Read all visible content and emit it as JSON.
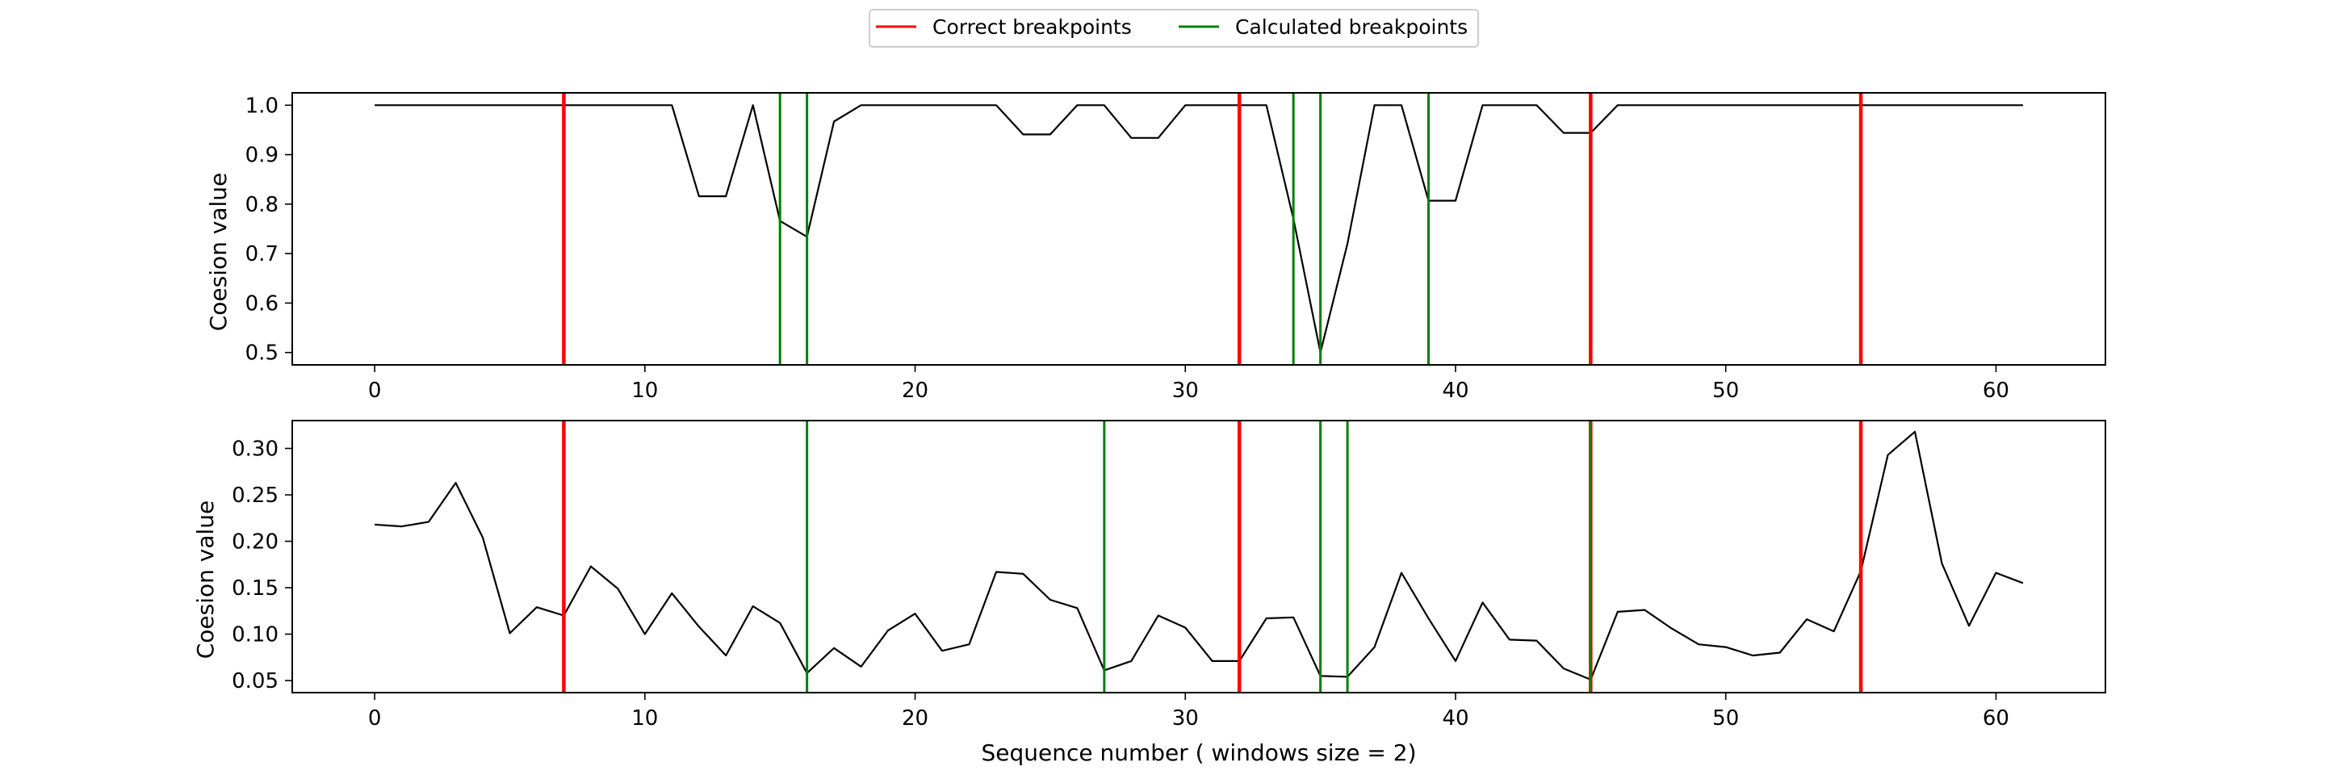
{
  "legend": {
    "correct_label": "Correct breakpoints",
    "calculated_label": "Calculated breakpoints",
    "placement": "top-center"
  },
  "colors": {
    "correct": "#ff0000",
    "calculated": "#008000",
    "series": "#000000"
  },
  "chart_data": [
    {
      "type": "line",
      "title": "",
      "xlabel": "",
      "ylabel": "Coesion value",
      "xlim": [
        -3.05,
        64.05
      ],
      "ylim": [
        0.475,
        1.025
      ],
      "xticks": [
        0,
        10,
        20,
        30,
        40,
        50,
        60
      ],
      "yticks": [
        0.5,
        0.6,
        0.7,
        0.8,
        0.9,
        1.0
      ],
      "ytick_labels": [
        "0.5",
        "0.6",
        "0.7",
        "0.8",
        "0.9",
        "1.0"
      ],
      "grid": false,
      "correct_breakpoints": [
        7,
        32,
        45,
        55
      ],
      "calculated_breakpoints": [
        15,
        16,
        34,
        35,
        39
      ],
      "x": [
        0,
        1,
        2,
        3,
        4,
        5,
        6,
        7,
        8,
        9,
        10,
        11,
        12,
        13,
        14,
        15,
        16,
        17,
        18,
        19,
        20,
        21,
        22,
        23,
        24,
        25,
        26,
        27,
        28,
        29,
        30,
        31,
        32,
        33,
        34,
        35,
        36,
        37,
        38,
        39,
        40,
        41,
        42,
        43,
        44,
        45,
        46,
        47,
        48,
        49,
        50,
        51,
        52,
        53,
        54,
        55,
        56,
        57,
        58,
        59,
        60,
        61
      ],
      "values": [
        1.0,
        1.0,
        1.0,
        1.0,
        1.0,
        1.0,
        1.0,
        1.0,
        1.0,
        1.0,
        1.0,
        1.0,
        0.816,
        0.816,
        1.0,
        0.766,
        0.734,
        0.967,
        1.0,
        1.0,
        1.0,
        1.0,
        1.0,
        1.0,
        0.941,
        0.941,
        1.0,
        1.0,
        0.934,
        0.934,
        1.0,
        1.0,
        1.0,
        1.0,
        0.77,
        0.5,
        0.72,
        1.0,
        1.0,
        0.807,
        0.807,
        1.0,
        1.0,
        1.0,
        0.944,
        0.944,
        1.0,
        1.0,
        1.0,
        1.0,
        1.0,
        1.0,
        1.0,
        1.0,
        1.0,
        1.0,
        1.0,
        1.0,
        1.0,
        1.0,
        1.0,
        1.0
      ]
    },
    {
      "type": "line",
      "title": "",
      "xlabel": "Sequence number ( windows size = 2)",
      "ylabel": "Coesion value",
      "xlim": [
        -3.05,
        64.05
      ],
      "ylim": [
        0.037,
        0.33
      ],
      "xticks": [
        0,
        10,
        20,
        30,
        40,
        50,
        60
      ],
      "yticks": [
        0.05,
        0.1,
        0.15,
        0.2,
        0.25,
        0.3
      ],
      "ytick_labels": [
        "0.05",
        "0.10",
        "0.15",
        "0.20",
        "0.25",
        "0.30"
      ],
      "grid": false,
      "correct_breakpoints": [
        7,
        32,
        45,
        55
      ],
      "calculated_breakpoints": [
        16,
        27,
        35,
        36,
        45
      ],
      "x": [
        0,
        1,
        2,
        3,
        4,
        5,
        6,
        7,
        8,
        9,
        10,
        11,
        12,
        13,
        14,
        15,
        16,
        17,
        18,
        19,
        20,
        21,
        22,
        23,
        24,
        25,
        26,
        27,
        28,
        29,
        30,
        31,
        32,
        33,
        34,
        35,
        36,
        37,
        38,
        39,
        40,
        41,
        42,
        43,
        44,
        45,
        46,
        47,
        48,
        49,
        50,
        51,
        52,
        53,
        54,
        55,
        56,
        57,
        58,
        59,
        60,
        61
      ],
      "values": [
        0.218,
        0.216,
        0.221,
        0.263,
        0.204,
        0.101,
        0.129,
        0.12,
        0.173,
        0.149,
        0.1,
        0.144,
        0.108,
        0.077,
        0.13,
        0.112,
        0.058,
        0.085,
        0.065,
        0.104,
        0.122,
        0.082,
        0.089,
        0.167,
        0.165,
        0.137,
        0.128,
        0.061,
        0.071,
        0.12,
        0.107,
        0.071,
        0.071,
        0.117,
        0.118,
        0.055,
        0.054,
        0.086,
        0.166,
        0.117,
        0.071,
        0.134,
        0.094,
        0.093,
        0.063,
        0.051,
        0.124,
        0.126,
        0.106,
        0.089,
        0.086,
        0.077,
        0.08,
        0.116,
        0.103,
        0.168,
        0.293,
        0.318,
        0.176,
        0.109,
        0.166,
        0.155
      ]
    }
  ]
}
